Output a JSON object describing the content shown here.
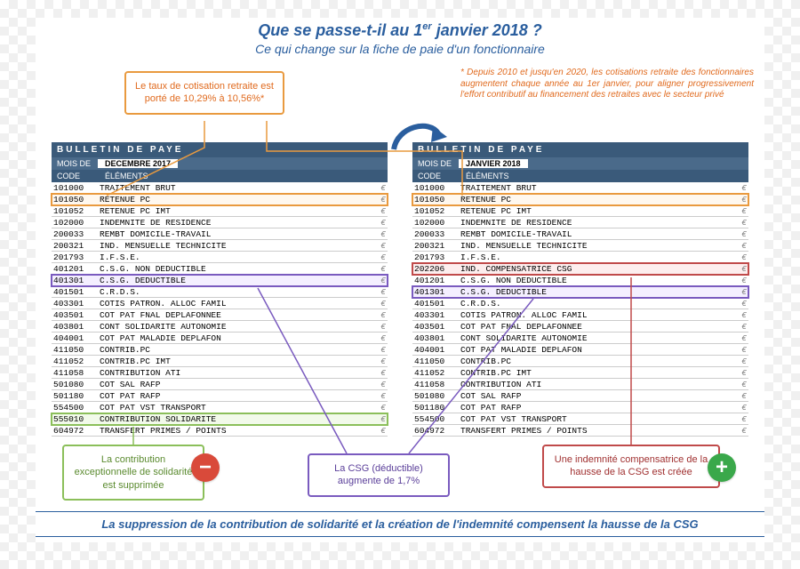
{
  "title_html": "Que se passe-t-il au 1<sup>er</sup> janvier 2018 ?",
  "subtitle": "Ce qui change sur la fiche de paie d'un fonctionnaire",
  "note_right": "* Depuis 2010 et jusqu'en 2020, les cotisations retraite des fonctionnaires augmentent chaque année au 1er janvier, pour aligner progressivement l'effort contributif au financement des retraites avec le secteur privé",
  "callouts": {
    "orange": "Le taux de cotisation retraite est porté de 10,29% à 10,56%*",
    "green": "La contribution exceptionnelle de solidarité est supprimée",
    "purple": "La CSG (déductible) augmente de 1,7%",
    "red": "Une indemnité compensatrice de la hausse de la CSG est créée"
  },
  "badges": {
    "minus": "−",
    "plus": "+"
  },
  "bulletin": {
    "header": "BULLETIN DE PAYE",
    "mois_label": "MOIS DE",
    "code_label": "CODE",
    "elements_label": "ÉLÉMENTS",
    "euro": "€"
  },
  "left": {
    "month": "DECEMBRE 2017",
    "rows": [
      {
        "code": "101000",
        "label": "TRAITEMENT BRUT"
      },
      {
        "code": "101050",
        "label": "RETENUE PC",
        "hl": "orange"
      },
      {
        "code": "101052",
        "label": "RETENUE PC IMT"
      },
      {
        "code": "102000",
        "label": "INDEMNITE DE RESIDENCE"
      },
      {
        "code": "200033",
        "label": "REMBT DOMICILE-TRAVAIL"
      },
      {
        "code": "200321",
        "label": "IND. MENSUELLE TECHNICITE"
      },
      {
        "code": "201793",
        "label": "I.F.S.E."
      },
      {
        "code": "401201",
        "label": "C.S.G. NON DEDUCTIBLE"
      },
      {
        "code": "401301",
        "label": "C.S.G. DEDUCTIBLE",
        "hl": "purple"
      },
      {
        "code": "401501",
        "label": "C.R.D.S."
      },
      {
        "code": "403301",
        "label": "COTIS PATRON. ALLOC FAMIL"
      },
      {
        "code": "403501",
        "label": "COT PAT FNAL DEPLAFONNEE"
      },
      {
        "code": "403801",
        "label": "CONT SOLIDARITE AUTONOMIE"
      },
      {
        "code": "404001",
        "label": "COT PAT MALADIE DEPLAFON"
      },
      {
        "code": "411050",
        "label": "CONTRIB.PC"
      },
      {
        "code": "411052",
        "label": "CONTRIB.PC IMT"
      },
      {
        "code": "411058",
        "label": "CONTRIBUTION ATI"
      },
      {
        "code": "501080",
        "label": "COT SAL RAFP"
      },
      {
        "code": "501180",
        "label": "COT PAT RAFP"
      },
      {
        "code": "554500",
        "label": "COT PAT VST TRANSPORT"
      },
      {
        "code": "555010",
        "label": "CONTRIBUTION SOLIDARITE",
        "hl": "green"
      },
      {
        "code": "604972",
        "label": "TRANSFERT PRIMES / POINTS"
      }
    ]
  },
  "right": {
    "month": "JANVIER 2018",
    "rows": [
      {
        "code": "101000",
        "label": "TRAITEMENT BRUT"
      },
      {
        "code": "101050",
        "label": "RETENUE PC",
        "hl": "orange"
      },
      {
        "code": "101052",
        "label": "RETENUE PC IMT"
      },
      {
        "code": "102000",
        "label": "INDEMNITE DE RESIDENCE"
      },
      {
        "code": "200033",
        "label": "REMBT DOMICILE-TRAVAIL"
      },
      {
        "code": "200321",
        "label": "IND. MENSUELLE TECHNICITE"
      },
      {
        "code": "201793",
        "label": "I.F.S.E."
      },
      {
        "code": "202206",
        "label": "IND. COMPENSATRICE CSG",
        "hl": "red"
      },
      {
        "code": "401201",
        "label": "C.S.G. NON DEDUCTIBLE"
      },
      {
        "code": "401301",
        "label": "C.S.G. DEDUCTIBLE",
        "hl": "purple"
      },
      {
        "code": "401501",
        "label": "C.R.D.S."
      },
      {
        "code": "403301",
        "label": "COTIS PATRON. ALLOC FAMIL"
      },
      {
        "code": "403501",
        "label": "COT PAT FNAL DEPLAFONNEE"
      },
      {
        "code": "403801",
        "label": "CONT SOLIDARITE AUTONOMIE"
      },
      {
        "code": "404001",
        "label": "COT PAT MALADIE DEPLAFON"
      },
      {
        "code": "411050",
        "label": "CONTRIB.PC"
      },
      {
        "code": "411052",
        "label": "CONTRIB.PC IMT"
      },
      {
        "code": "411058",
        "label": "CONTRIBUTION ATI"
      },
      {
        "code": "501080",
        "label": "COT SAL RAFP"
      },
      {
        "code": "501180",
        "label": "COT PAT RAFP"
      },
      {
        "code": "554500",
        "label": "COT PAT VST TRANSPORT"
      },
      {
        "code": "604972",
        "label": "TRANSFERT PRIMES / POINTS"
      }
    ]
  },
  "footer": "La suppression de la contribution de solidarité et la création de l'indemnité compensent la hausse de la CSG",
  "colors": {
    "blue": "#2a5e9e",
    "orange": "#e99a3f",
    "green": "#8bbf5a",
    "purple": "#7a5bbf",
    "red": "#c04a4a",
    "header": "#3a5a7a"
  }
}
